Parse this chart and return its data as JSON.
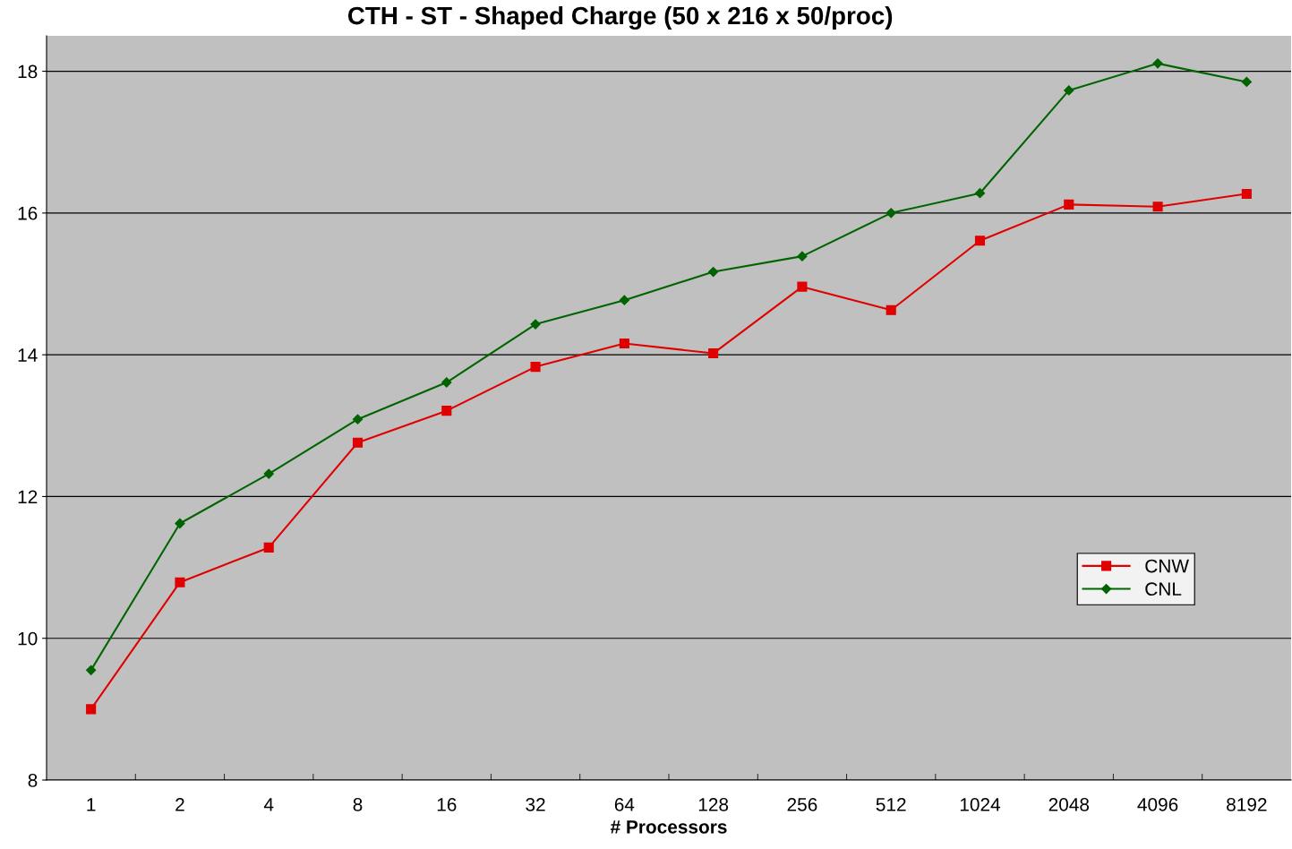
{
  "chart_data": {
    "type": "line",
    "title": "CTH - ST - Shaped Charge (50 x 216 x 50/proc)",
    "xlabel": "# Processors",
    "categories": [
      "1",
      "2",
      "4",
      "8",
      "16",
      "32",
      "64",
      "128",
      "256",
      "512",
      "1024",
      "2048",
      "4096",
      "8192"
    ],
    "series": [
      {
        "name": "CNW",
        "color": "#e00000",
        "marker": "square",
        "values": [
          9.0,
          10.79,
          11.28,
          12.76,
          13.21,
          13.83,
          14.16,
          14.02,
          14.96,
          14.63,
          15.61,
          16.12,
          16.09,
          16.27
        ]
      },
      {
        "name": "CNL",
        "color": "#006400",
        "marker": "diamond",
        "values": [
          9.55,
          11.62,
          12.32,
          13.09,
          13.61,
          14.43,
          14.77,
          15.17,
          15.39,
          16.0,
          16.28,
          17.73,
          18.11,
          17.85
        ]
      }
    ],
    "ylim": [
      8,
      18.5
    ],
    "yticks": [
      8,
      10,
      12,
      14,
      16,
      18
    ],
    "grid": "y",
    "legend": "right",
    "line_style": "solid"
  }
}
